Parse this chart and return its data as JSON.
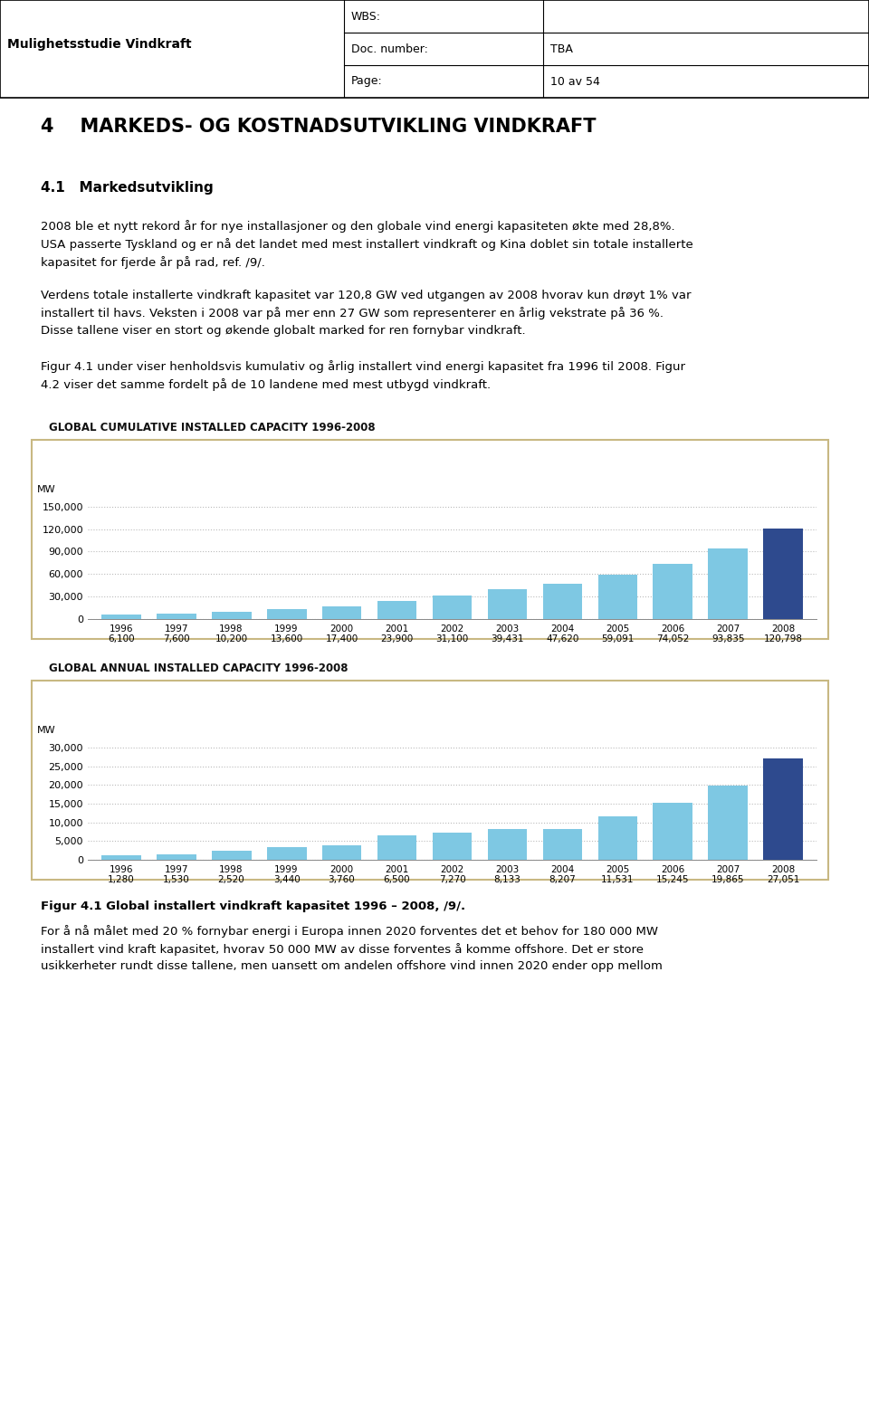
{
  "page_title": "4    MARKEDS- OG KOSTNADSUTVIKLING VINDKRAFT",
  "section_title": "4.1   Markedsutvikling",
  "header_left": "Mulighetsstudie Vindkraft",
  "header_wbs": "WBS:",
  "header_doc": "Doc. number:",
  "header_doc_val": "TBA",
  "header_page": "Page:",
  "header_page_val": "10 av 54",
  "para1": "2008 ble et nytt rekord år for nye installasjoner og den globale vind energi kapasiteten økte med 28,8%.\nUSA passerte Tyskland og er nå det landet med mest installert vindkraft og Kina doblet sin totale installerte\nkapasitet for fjerde år på rad, ref. /9/.",
  "para2": "Verdens totale installerte vindkraft kapasitet var 120,8 GW ved utgangen av 2008 hvorav kun drøyt 1% var\ninstallert til havs. Veksten i 2008 var på mer enn 27 GW som representerer en årlig vekstrate på 36 %.\nDisse tallene viser en stort og økende globalt marked for ren fornybar vindkraft.",
  "para3": "Figur 4.1 under viser henholdsvis kumulativ og årlig installert vind energi kapasitet fra 1996 til 2008. Figur\n4.2 viser det samme fordelt på de 10 landene med mest utbygd vindkraft.",
  "chart1_title": "GLOBAL CUMULATIVE INSTALLED CAPACITY 1996-2008",
  "chart2_title": "GLOBAL ANNUAL INSTALLED CAPACITY 1996-2008",
  "fig_caption": "Figur 4.1 Global installert vindkraft kapasitet 1996 – 2008, /9/.",
  "para4": "For å nå målet med 20 % fornybar energi i Europa innen 2020 forventes det et behov for 180 000 MW\ninstallert vind kraft kapasitet, hvorav 50 000 MW av disse forventes å komme offshore. Det er store\nusikkerheter rundt disse tallene, men uansett om andelen offshore vind innen 2020 ender opp mellom",
  "years": [
    "1996",
    "1997",
    "1998",
    "1999",
    "2000",
    "2001",
    "2002",
    "2003",
    "2004",
    "2005",
    "2006",
    "2007",
    "2008"
  ],
  "cumulative_values": [
    6100,
    7600,
    10200,
    13600,
    17400,
    23900,
    31100,
    39431,
    47620,
    59091,
    74052,
    93835,
    120798
  ],
  "cumulative_labels": [
    "6,100",
    "7,600",
    "10,200",
    "13,600",
    "17,400",
    "23,900",
    "31,100",
    "39,431",
    "47,620",
    "59,091",
    "74,052",
    "93,835",
    "120,798"
  ],
  "annual_values": [
    1280,
    1530,
    2520,
    3440,
    3760,
    6500,
    7270,
    8133,
    8207,
    11531,
    15245,
    19865,
    27051
  ],
  "annual_labels": [
    "1,280",
    "1,530",
    "2,520",
    "3,440",
    "3,760",
    "6,500",
    "7,270",
    "8,133",
    "8,207",
    "11,531",
    "15,245",
    "19,865",
    "27,051"
  ],
  "bar_color_light": "#7EC8E3",
  "bar_color_dark": "#2E4A8E",
  "chart_bg": "#FFFFFF",
  "chart_border": "#C8B882",
  "grid_color": "#BBBBBB",
  "ylabel_mw": "MW",
  "cum_ylim": [
    0,
    157000
  ],
  "cum_yticks": [
    0,
    30000,
    60000,
    90000,
    120000,
    150000
  ],
  "ann_ylim": [
    0,
    31500
  ],
  "ann_yticks": [
    0,
    5000,
    10000,
    15000,
    20000,
    25000,
    30000
  ]
}
